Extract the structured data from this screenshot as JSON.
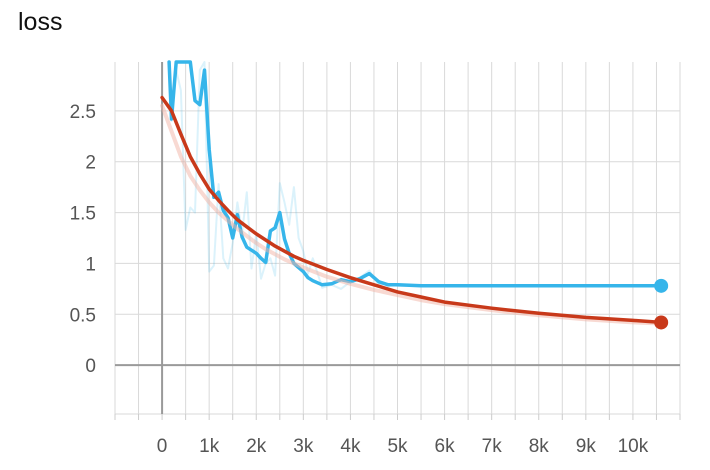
{
  "chart_data": {
    "type": "line",
    "title": "loss",
    "xlabel": "",
    "ylabel": "",
    "xlim": [
      -1000,
      11000
    ],
    "ylim": [
      -0.48,
      2.98
    ],
    "x_ticks": [
      {
        "value": 0,
        "label": "0"
      },
      {
        "value": 1000,
        "label": "1k"
      },
      {
        "value": 2000,
        "label": "2k"
      },
      {
        "value": 3000,
        "label": "3k"
      },
      {
        "value": 4000,
        "label": "4k"
      },
      {
        "value": 5000,
        "label": "5k"
      },
      {
        "value": 6000,
        "label": "6k"
      },
      {
        "value": 7000,
        "label": "7k"
      },
      {
        "value": 8000,
        "label": "8k"
      },
      {
        "value": 9000,
        "label": "9k"
      },
      {
        "value": 10000,
        "label": "10k"
      }
    ],
    "y_ticks": [
      {
        "value": 0,
        "label": "0"
      },
      {
        "value": 0.5,
        "label": "0.5"
      },
      {
        "value": 1,
        "label": "1"
      },
      {
        "value": 1.5,
        "label": "1.5"
      },
      {
        "value": 2,
        "label": "2"
      },
      {
        "value": 2.5,
        "label": "2.5"
      }
    ],
    "grid": true,
    "series": [
      {
        "key": "blue-raw",
        "color": "#36b5ea",
        "opacity": 0.18,
        "width": 2,
        "x": [
          150,
          200,
          300,
          400,
          500,
          600,
          700,
          800,
          900,
          1000,
          1100,
          1200,
          1300,
          1400,
          1500,
          1600,
          1700,
          1800,
          1900,
          2000,
          2100,
          2200,
          2300,
          2400,
          2500,
          2600,
          2700,
          2800,
          2900,
          3000,
          3100,
          3200,
          3400,
          3600,
          3800,
          4000,
          4200,
          4400,
          4600,
          4800,
          5000,
          5500,
          6000,
          7000,
          8000,
          9000,
          10000,
          10600
        ],
        "y": [
          3.0,
          2.4,
          2.9,
          2.7,
          1.33,
          1.55,
          1.5,
          2.9,
          3.0,
          0.92,
          0.98,
          1.78,
          1.05,
          0.95,
          1.2,
          1.6,
          1.3,
          1.7,
          0.95,
          1.3,
          0.85,
          1.0,
          1.05,
          0.88,
          1.79,
          1.6,
          1.38,
          1.75,
          1.25,
          1.12,
          0.9,
          1.05,
          0.76,
          0.79,
          0.75,
          0.82,
          0.86,
          0.93,
          0.79,
          0.8,
          0.78,
          0.78,
          0.78,
          0.78,
          0.78,
          0.78,
          0.78,
          0.78
        ]
      },
      {
        "key": "blue-smoothed",
        "color": "#36b5ea",
        "opacity": 1,
        "width": 3.5,
        "x": [
          150,
          200,
          300,
          400,
          500,
          600,
          700,
          800,
          900,
          1000,
          1100,
          1200,
          1300,
          1400,
          1500,
          1600,
          1700,
          1800,
          1900,
          2000,
          2100,
          2200,
          2300,
          2400,
          2500,
          2600,
          2700,
          2800,
          2900,
          3000,
          3100,
          3200,
          3400,
          3600,
          3800,
          4000,
          4200,
          4400,
          4600,
          4800,
          5000,
          5500,
          6000,
          7000,
          8000,
          9000,
          10000,
          10600
        ],
        "y": [
          3.0,
          2.42,
          3.0,
          3.0,
          3.0,
          3.0,
          2.6,
          2.56,
          2.9,
          2.12,
          1.65,
          1.7,
          1.52,
          1.45,
          1.25,
          1.48,
          1.26,
          1.16,
          1.13,
          1.1,
          1.05,
          1.01,
          1.32,
          1.35,
          1.5,
          1.24,
          1.1,
          1.0,
          0.96,
          0.92,
          0.86,
          0.83,
          0.79,
          0.8,
          0.84,
          0.82,
          0.85,
          0.9,
          0.82,
          0.79,
          0.79,
          0.78,
          0.78,
          0.78,
          0.78,
          0.78,
          0.78,
          0.78
        ]
      },
      {
        "key": "red-raw",
        "color": "#f2b3a6",
        "opacity": 0.5,
        "width": 4,
        "x": [
          0,
          200,
          400,
          600,
          800,
          1000,
          1200,
          1400,
          1600,
          1800,
          2000,
          2200,
          2400,
          2600,
          2800,
          3000,
          3500,
          4000,
          4500,
          5000,
          5500,
          6000,
          7000,
          8000,
          9000,
          10000,
          10600
        ],
        "y": [
          2.55,
          2.3,
          2.05,
          1.86,
          1.72,
          1.6,
          1.5,
          1.42,
          1.34,
          1.27,
          1.2,
          1.14,
          1.09,
          1.04,
          1.0,
          0.96,
          0.87,
          0.8,
          0.74,
          0.69,
          0.64,
          0.6,
          0.54,
          0.49,
          0.45,
          0.42,
          0.41
        ]
      },
      {
        "key": "red-smoothed",
        "color": "#c8391a",
        "opacity": 1,
        "width": 3.5,
        "x": [
          0,
          200,
          400,
          600,
          800,
          1000,
          1200,
          1400,
          1600,
          1800,
          2000,
          2200,
          2400,
          2600,
          2800,
          3000,
          3500,
          4000,
          4500,
          5000,
          5500,
          6000,
          7000,
          8000,
          9000,
          10000,
          10600
        ],
        "y": [
          2.63,
          2.5,
          2.27,
          2.05,
          1.88,
          1.73,
          1.62,
          1.52,
          1.43,
          1.36,
          1.29,
          1.23,
          1.17,
          1.12,
          1.07,
          1.03,
          0.94,
          0.86,
          0.79,
          0.72,
          0.67,
          0.62,
          0.56,
          0.51,
          0.47,
          0.44,
          0.42
        ]
      }
    ],
    "end_markers": [
      {
        "key": "blue-end",
        "series": "blue-smoothed",
        "x": 10600,
        "y": 0.78,
        "color": "#36b5ea"
      },
      {
        "key": "red-end",
        "series": "red-smoothed",
        "x": 10600,
        "y": 0.42,
        "color": "#c8391a"
      }
    ]
  }
}
